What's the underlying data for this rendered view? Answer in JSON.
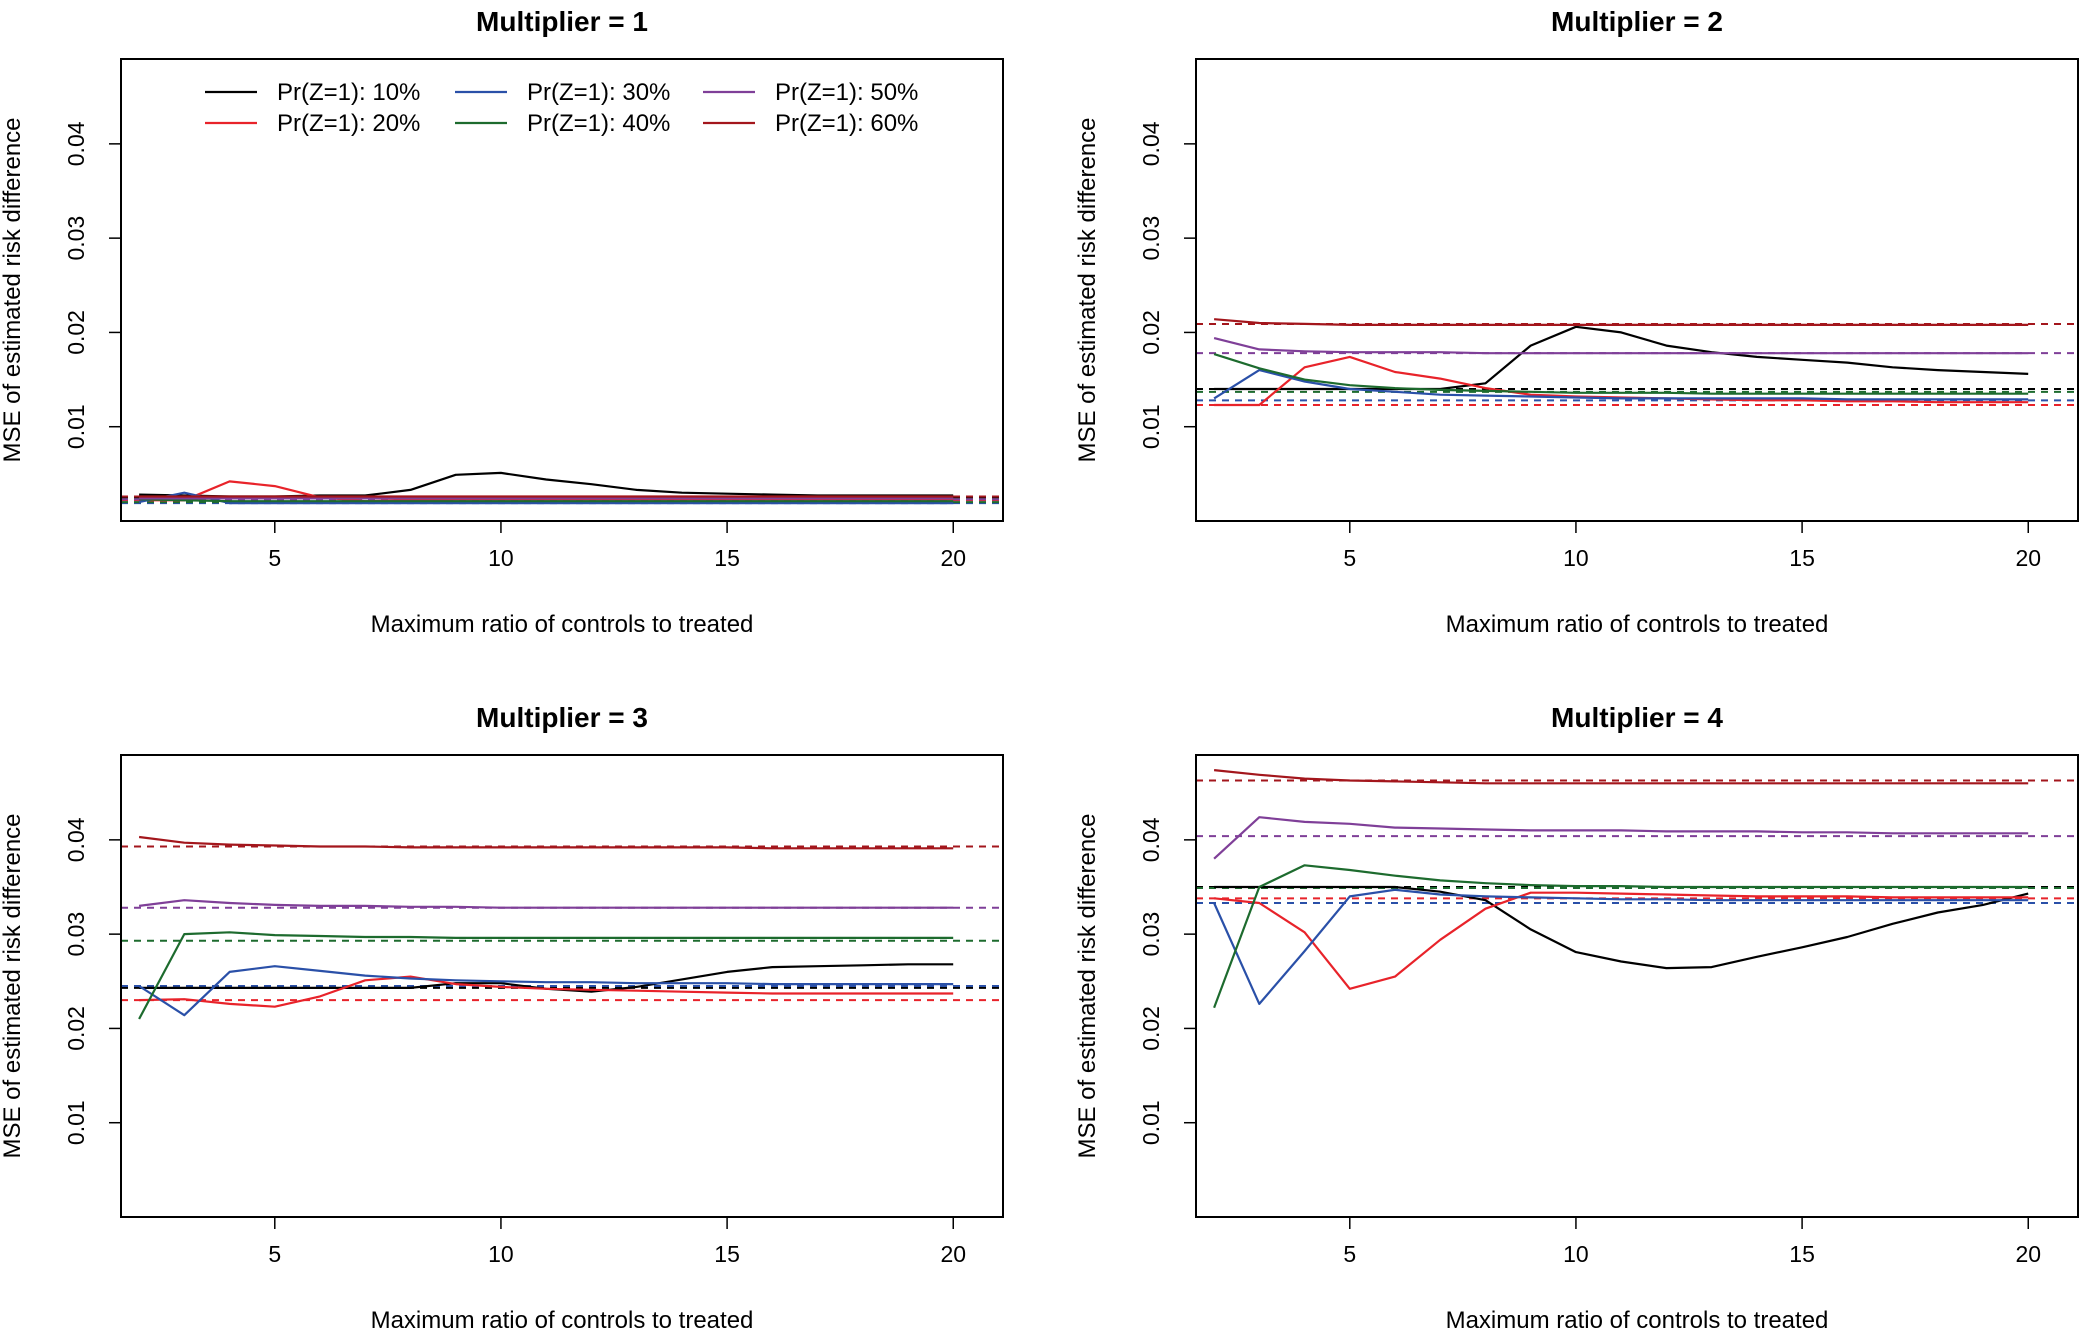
{
  "chart_data": [
    {
      "type": "line",
      "title": "Multiplier = 1",
      "xlabel": "Maximum ratio of controls to treated",
      "ylabel": "MSE of estimated risk difference",
      "xlim": [
        1.6,
        21.1
      ],
      "ylim": [
        0,
        0.049
      ],
      "x_ticks": [
        5,
        10,
        15,
        20
      ],
      "y_ticks": [
        0.01,
        0.02,
        0.03,
        0.04
      ],
      "x_tick_labels": [
        "5",
        "10",
        "15",
        "20"
      ],
      "y_tick_labels": [
        "0.01",
        "0.02",
        "0.03",
        "0.04"
      ],
      "legend": "top-left",
      "x": [
        2,
        3,
        4,
        5,
        6,
        7,
        8,
        9,
        10,
        11,
        12,
        13,
        14,
        15,
        16,
        17,
        18,
        19,
        20
      ],
      "series": [
        {
          "name": "Pr(Z=1): 10%",
          "color": "#000000",
          "reference": 0.0025,
          "values": [
            0.0028,
            0.0027,
            0.0026,
            0.0026,
            0.0027,
            0.0027,
            0.0033,
            0.0049,
            0.0051,
            0.0044,
            0.0039,
            0.0033,
            0.003,
            0.0029,
            0.0028,
            0.0027,
            0.0027,
            0.0027,
            0.0027
          ]
        },
        {
          "name": "Pr(Z=1): 20%",
          "color": "#e8232a",
          "reference": 0.0022,
          "values": [
            0.0022,
            0.0022,
            0.0042,
            0.0037,
            0.0025,
            0.0021,
            0.0022,
            0.0023,
            0.0023,
            0.0023,
            0.0023,
            0.0023,
            0.0023,
            0.0023,
            0.0023,
            0.0023,
            0.0023,
            0.0023,
            0.0023
          ]
        },
        {
          "name": "Pr(Z=1): 30%",
          "color": "#2a50a8",
          "reference": 0.0019,
          "values": [
            0.002,
            0.003,
            0.0019,
            0.0019,
            0.0019,
            0.0019,
            0.0019,
            0.0019,
            0.0019,
            0.0019,
            0.0019,
            0.0019,
            0.0019,
            0.0019,
            0.0019,
            0.0019,
            0.0019,
            0.0019,
            0.0019
          ]
        },
        {
          "name": "Pr(Z=1): 40%",
          "color": "#1d6b2e",
          "reference": 0.002,
          "values": [
            0.0023,
            0.0022,
            0.0021,
            0.0021,
            0.0021,
            0.0021,
            0.0021,
            0.0021,
            0.0021,
            0.0021,
            0.0021,
            0.0021,
            0.0021,
            0.0021,
            0.0021,
            0.0021,
            0.0021,
            0.0021,
            0.0021
          ]
        },
        {
          "name": "Pr(Z=1): 50%",
          "color": "#7f3f98",
          "reference": 0.0023,
          "values": [
            0.0024,
            0.0024,
            0.0024,
            0.0024,
            0.0024,
            0.0024,
            0.0024,
            0.0024,
            0.0024,
            0.0024,
            0.0024,
            0.0024,
            0.0024,
            0.0024,
            0.0024,
            0.0024,
            0.0024,
            0.0024,
            0.0024
          ]
        },
        {
          "name": "Pr(Z=1): 60%",
          "color": "#a3161c",
          "reference": 0.0026,
          "values": [
            0.0026,
            0.0026,
            0.0026,
            0.0026,
            0.0026,
            0.0026,
            0.0026,
            0.0026,
            0.0026,
            0.0026,
            0.0026,
            0.0026,
            0.0026,
            0.0026,
            0.0026,
            0.0026,
            0.0026,
            0.0026,
            0.0026
          ]
        }
      ]
    },
    {
      "type": "line",
      "title": "Multiplier = 2",
      "xlabel": "Maximum ratio of controls to treated",
      "ylabel": "MSE of estimated risk difference",
      "xlim": [
        1.6,
        21.1
      ],
      "ylim": [
        0,
        0.049
      ],
      "x_ticks": [
        5,
        10,
        15,
        20
      ],
      "y_ticks": [
        0.01,
        0.02,
        0.03,
        0.04
      ],
      "x_tick_labels": [
        "5",
        "10",
        "15",
        "20"
      ],
      "y_tick_labels": [
        "0.01",
        "0.02",
        "0.03",
        "0.04"
      ],
      "legend": "none",
      "x": [
        2,
        3,
        4,
        5,
        6,
        7,
        8,
        9,
        10,
        11,
        12,
        13,
        14,
        15,
        16,
        17,
        18,
        19,
        20
      ],
      "series": [
        {
          "name": "Pr(Z=1): 10%",
          "color": "#000000",
          "reference": 0.014,
          "values": [
            0.014,
            0.014,
            0.014,
            0.014,
            0.014,
            0.014,
            0.0146,
            0.0186,
            0.0206,
            0.02,
            0.0186,
            0.0179,
            0.0174,
            0.0171,
            0.0168,
            0.0163,
            0.016,
            0.0158,
            0.0156
          ]
        },
        {
          "name": "Pr(Z=1): 20%",
          "color": "#e8232a",
          "reference": 0.0123,
          "values": [
            0.0123,
            0.0123,
            0.0163,
            0.0174,
            0.0158,
            0.0151,
            0.0141,
            0.0134,
            0.0132,
            0.0131,
            0.013,
            0.0129,
            0.0128,
            0.0128,
            0.0127,
            0.0127,
            0.0126,
            0.0126,
            0.0126
          ]
        },
        {
          "name": "Pr(Z=1): 30%",
          "color": "#2a50a8",
          "reference": 0.0128,
          "values": [
            0.013,
            0.016,
            0.0148,
            0.014,
            0.0137,
            0.0134,
            0.0133,
            0.0132,
            0.0131,
            0.013,
            0.013,
            0.013,
            0.013,
            0.013,
            0.0129,
            0.0129,
            0.0129,
            0.0129,
            0.0129
          ]
        },
        {
          "name": "Pr(Z=1): 40%",
          "color": "#1d6b2e",
          "reference": 0.0137,
          "values": [
            0.0177,
            0.0162,
            0.015,
            0.0144,
            0.0141,
            0.0139,
            0.0138,
            0.0137,
            0.0136,
            0.0136,
            0.0136,
            0.0135,
            0.0135,
            0.0135,
            0.0135,
            0.0135,
            0.0135,
            0.0135,
            0.0135
          ]
        },
        {
          "name": "Pr(Z=1): 50%",
          "color": "#7f3f98",
          "reference": 0.0178,
          "values": [
            0.0194,
            0.0182,
            0.018,
            0.0179,
            0.0179,
            0.0179,
            0.0178,
            0.0178,
            0.0178,
            0.0178,
            0.0178,
            0.0178,
            0.0178,
            0.0178,
            0.0178,
            0.0178,
            0.0178,
            0.0178,
            0.0178
          ]
        },
        {
          "name": "Pr(Z=1): 60%",
          "color": "#a3161c",
          "reference": 0.0209,
          "values": [
            0.0214,
            0.021,
            0.0209,
            0.0208,
            0.0208,
            0.0208,
            0.0208,
            0.0208,
            0.0208,
            0.0208,
            0.0208,
            0.0208,
            0.0208,
            0.0208,
            0.0208,
            0.0208,
            0.0208,
            0.0208,
            0.0208
          ]
        }
      ]
    },
    {
      "type": "line",
      "title": "Multiplier = 3",
      "xlabel": "Maximum ratio of controls to treated",
      "ylabel": "MSE of estimated risk difference",
      "xlim": [
        1.6,
        21.1
      ],
      "ylim": [
        0,
        0.049
      ],
      "x_ticks": [
        5,
        10,
        15,
        20
      ],
      "y_ticks": [
        0.01,
        0.02,
        0.03,
        0.04
      ],
      "x_tick_labels": [
        "5",
        "10",
        "15",
        "20"
      ],
      "y_tick_labels": [
        "0.01",
        "0.02",
        "0.03",
        "0.04"
      ],
      "legend": "none",
      "x": [
        2,
        3,
        4,
        5,
        6,
        7,
        8,
        9,
        10,
        11,
        12,
        13,
        14,
        15,
        16,
        17,
        18,
        19,
        20
      ],
      "series": [
        {
          "name": "Pr(Z=1): 10%",
          "color": "#000000",
          "reference": 0.0243,
          "values": [
            0.0243,
            0.0243,
            0.0243,
            0.0243,
            0.0243,
            0.0243,
            0.0243,
            0.0248,
            0.0248,
            0.0242,
            0.0239,
            0.0244,
            0.0252,
            0.026,
            0.0265,
            0.0266,
            0.0267,
            0.0268,
            0.0268
          ]
        },
        {
          "name": "Pr(Z=1): 20%",
          "color": "#e8232a",
          "reference": 0.023,
          "values": [
            0.023,
            0.0231,
            0.0226,
            0.0223,
            0.0234,
            0.0251,
            0.0255,
            0.0247,
            0.0244,
            0.0242,
            0.0241,
            0.024,
            0.0239,
            0.0238,
            0.0237,
            0.0237,
            0.0237,
            0.0237,
            0.0237
          ]
        },
        {
          "name": "Pr(Z=1): 30%",
          "color": "#2a50a8",
          "reference": 0.0245,
          "values": [
            0.0245,
            0.0214,
            0.026,
            0.0266,
            0.0261,
            0.0256,
            0.0253,
            0.0251,
            0.025,
            0.0249,
            0.0249,
            0.0248,
            0.0248,
            0.0248,
            0.0247,
            0.0247,
            0.0247,
            0.0247,
            0.0247
          ]
        },
        {
          "name": "Pr(Z=1): 40%",
          "color": "#1d6b2e",
          "reference": 0.0293,
          "values": [
            0.021,
            0.03,
            0.0302,
            0.0299,
            0.0298,
            0.0297,
            0.0297,
            0.0296,
            0.0296,
            0.0296,
            0.0296,
            0.0296,
            0.0296,
            0.0296,
            0.0296,
            0.0296,
            0.0296,
            0.0296,
            0.0296
          ]
        },
        {
          "name": "Pr(Z=1): 50%",
          "color": "#7f3f98",
          "reference": 0.0328,
          "values": [
            0.033,
            0.0336,
            0.0333,
            0.0331,
            0.033,
            0.033,
            0.0329,
            0.0329,
            0.0328,
            0.0328,
            0.0328,
            0.0328,
            0.0328,
            0.0328,
            0.0328,
            0.0328,
            0.0328,
            0.0328,
            0.0328
          ]
        },
        {
          "name": "Pr(Z=1): 60%",
          "color": "#a3161c",
          "reference": 0.0393,
          "values": [
            0.0403,
            0.0397,
            0.0395,
            0.0394,
            0.0393,
            0.0393,
            0.0392,
            0.0392,
            0.0392,
            0.0392,
            0.0392,
            0.0392,
            0.0392,
            0.0392,
            0.0391,
            0.0391,
            0.0391,
            0.0391,
            0.0391
          ]
        }
      ]
    },
    {
      "type": "line",
      "title": "Multiplier = 4",
      "xlabel": "Maximum ratio of controls to treated",
      "ylabel": "MSE of estimated risk difference",
      "xlim": [
        1.6,
        21.1
      ],
      "ylim": [
        0,
        0.049
      ],
      "x_ticks": [
        5,
        10,
        15,
        20
      ],
      "y_ticks": [
        0.01,
        0.02,
        0.03,
        0.04
      ],
      "x_tick_labels": [
        "5",
        "10",
        "15",
        "20"
      ],
      "y_tick_labels": [
        "0.01",
        "0.02",
        "0.03",
        "0.04"
      ],
      "legend": "none",
      "x": [
        2,
        3,
        4,
        5,
        6,
        7,
        8,
        9,
        10,
        11,
        12,
        13,
        14,
        15,
        16,
        17,
        18,
        19,
        20
      ],
      "series": [
        {
          "name": "Pr(Z=1): 10%",
          "color": "#000000",
          "reference": 0.035,
          "values": [
            0.035,
            0.035,
            0.035,
            0.035,
            0.035,
            0.0345,
            0.0336,
            0.0305,
            0.0281,
            0.0271,
            0.0264,
            0.0265,
            0.0276,
            0.0286,
            0.0297,
            0.0311,
            0.0323,
            0.0331,
            0.0343
          ]
        },
        {
          "name": "Pr(Z=1): 20%",
          "color": "#e8232a",
          "reference": 0.0338,
          "values": [
            0.0338,
            0.0333,
            0.0302,
            0.0242,
            0.0255,
            0.0294,
            0.0327,
            0.0344,
            0.0344,
            0.0343,
            0.0342,
            0.0341,
            0.034,
            0.034,
            0.034,
            0.0339,
            0.0339,
            0.0339,
            0.0339
          ]
        },
        {
          "name": "Pr(Z=1): 30%",
          "color": "#2a50a8",
          "reference": 0.0333,
          "values": [
            0.0333,
            0.0226,
            0.0282,
            0.034,
            0.0347,
            0.0342,
            0.034,
            0.0339,
            0.0338,
            0.0337,
            0.0337,
            0.0336,
            0.0336,
            0.0336,
            0.0336,
            0.0336,
            0.0336,
            0.0336,
            0.0336
          ]
        },
        {
          "name": "Pr(Z=1): 40%",
          "color": "#1d6b2e",
          "reference": 0.0349,
          "values": [
            0.0222,
            0.035,
            0.0373,
            0.0368,
            0.0362,
            0.0357,
            0.0354,
            0.0352,
            0.0351,
            0.0351,
            0.035,
            0.035,
            0.035,
            0.035,
            0.035,
            0.035,
            0.035,
            0.035,
            0.035
          ]
        },
        {
          "name": "Pr(Z=1): 50%",
          "color": "#7f3f98",
          "reference": 0.0404,
          "values": [
            0.038,
            0.0424,
            0.0419,
            0.0417,
            0.0413,
            0.0412,
            0.0411,
            0.041,
            0.041,
            0.041,
            0.0409,
            0.0409,
            0.0409,
            0.0408,
            0.0408,
            0.0407,
            0.0407,
            0.0407,
            0.0407
          ]
        },
        {
          "name": "Pr(Z=1): 60%",
          "color": "#a3161c",
          "reference": 0.0463,
          "values": [
            0.0474,
            0.0469,
            0.0465,
            0.0463,
            0.0462,
            0.0461,
            0.046,
            0.046,
            0.046,
            0.046,
            0.046,
            0.046,
            0.046,
            0.046,
            0.046,
            0.046,
            0.046,
            0.046,
            0.046
          ]
        }
      ]
    }
  ]
}
